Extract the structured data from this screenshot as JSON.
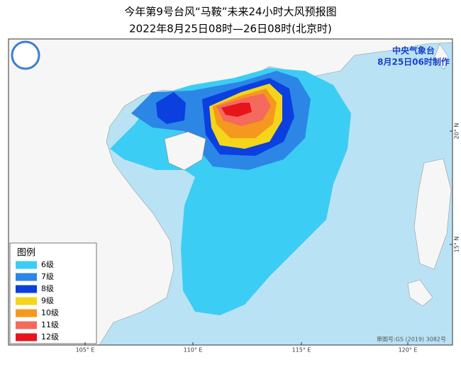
{
  "header": {
    "title": "今年第9号台风“马鞍”未来24小时大风预报图",
    "subtitle": "2022年8月25日08时—26日08时(北京时)"
  },
  "issuer": {
    "name": "中央气象台",
    "time": "8月25日06时制作"
  },
  "legend": {
    "title": "图例",
    "items": [
      {
        "label": "6级",
        "color": "#3ccdf4"
      },
      {
        "label": "7级",
        "color": "#2b86e6"
      },
      {
        "label": "8级",
        "color": "#0b3fe0"
      },
      {
        "label": "9级",
        "color": "#f4d51c"
      },
      {
        "label": "10级",
        "color": "#f5981e"
      },
      {
        "label": "11级",
        "color": "#f46a5e"
      },
      {
        "label": "12级",
        "color": "#e8141c"
      }
    ]
  },
  "lon_labels": [
    "105° E",
    "110° E",
    "115° E",
    "120° E"
  ],
  "lat_labels": [
    "20° N",
    "15° N"
  ],
  "footer": "审图号:GS (2019) 3082号"
}
